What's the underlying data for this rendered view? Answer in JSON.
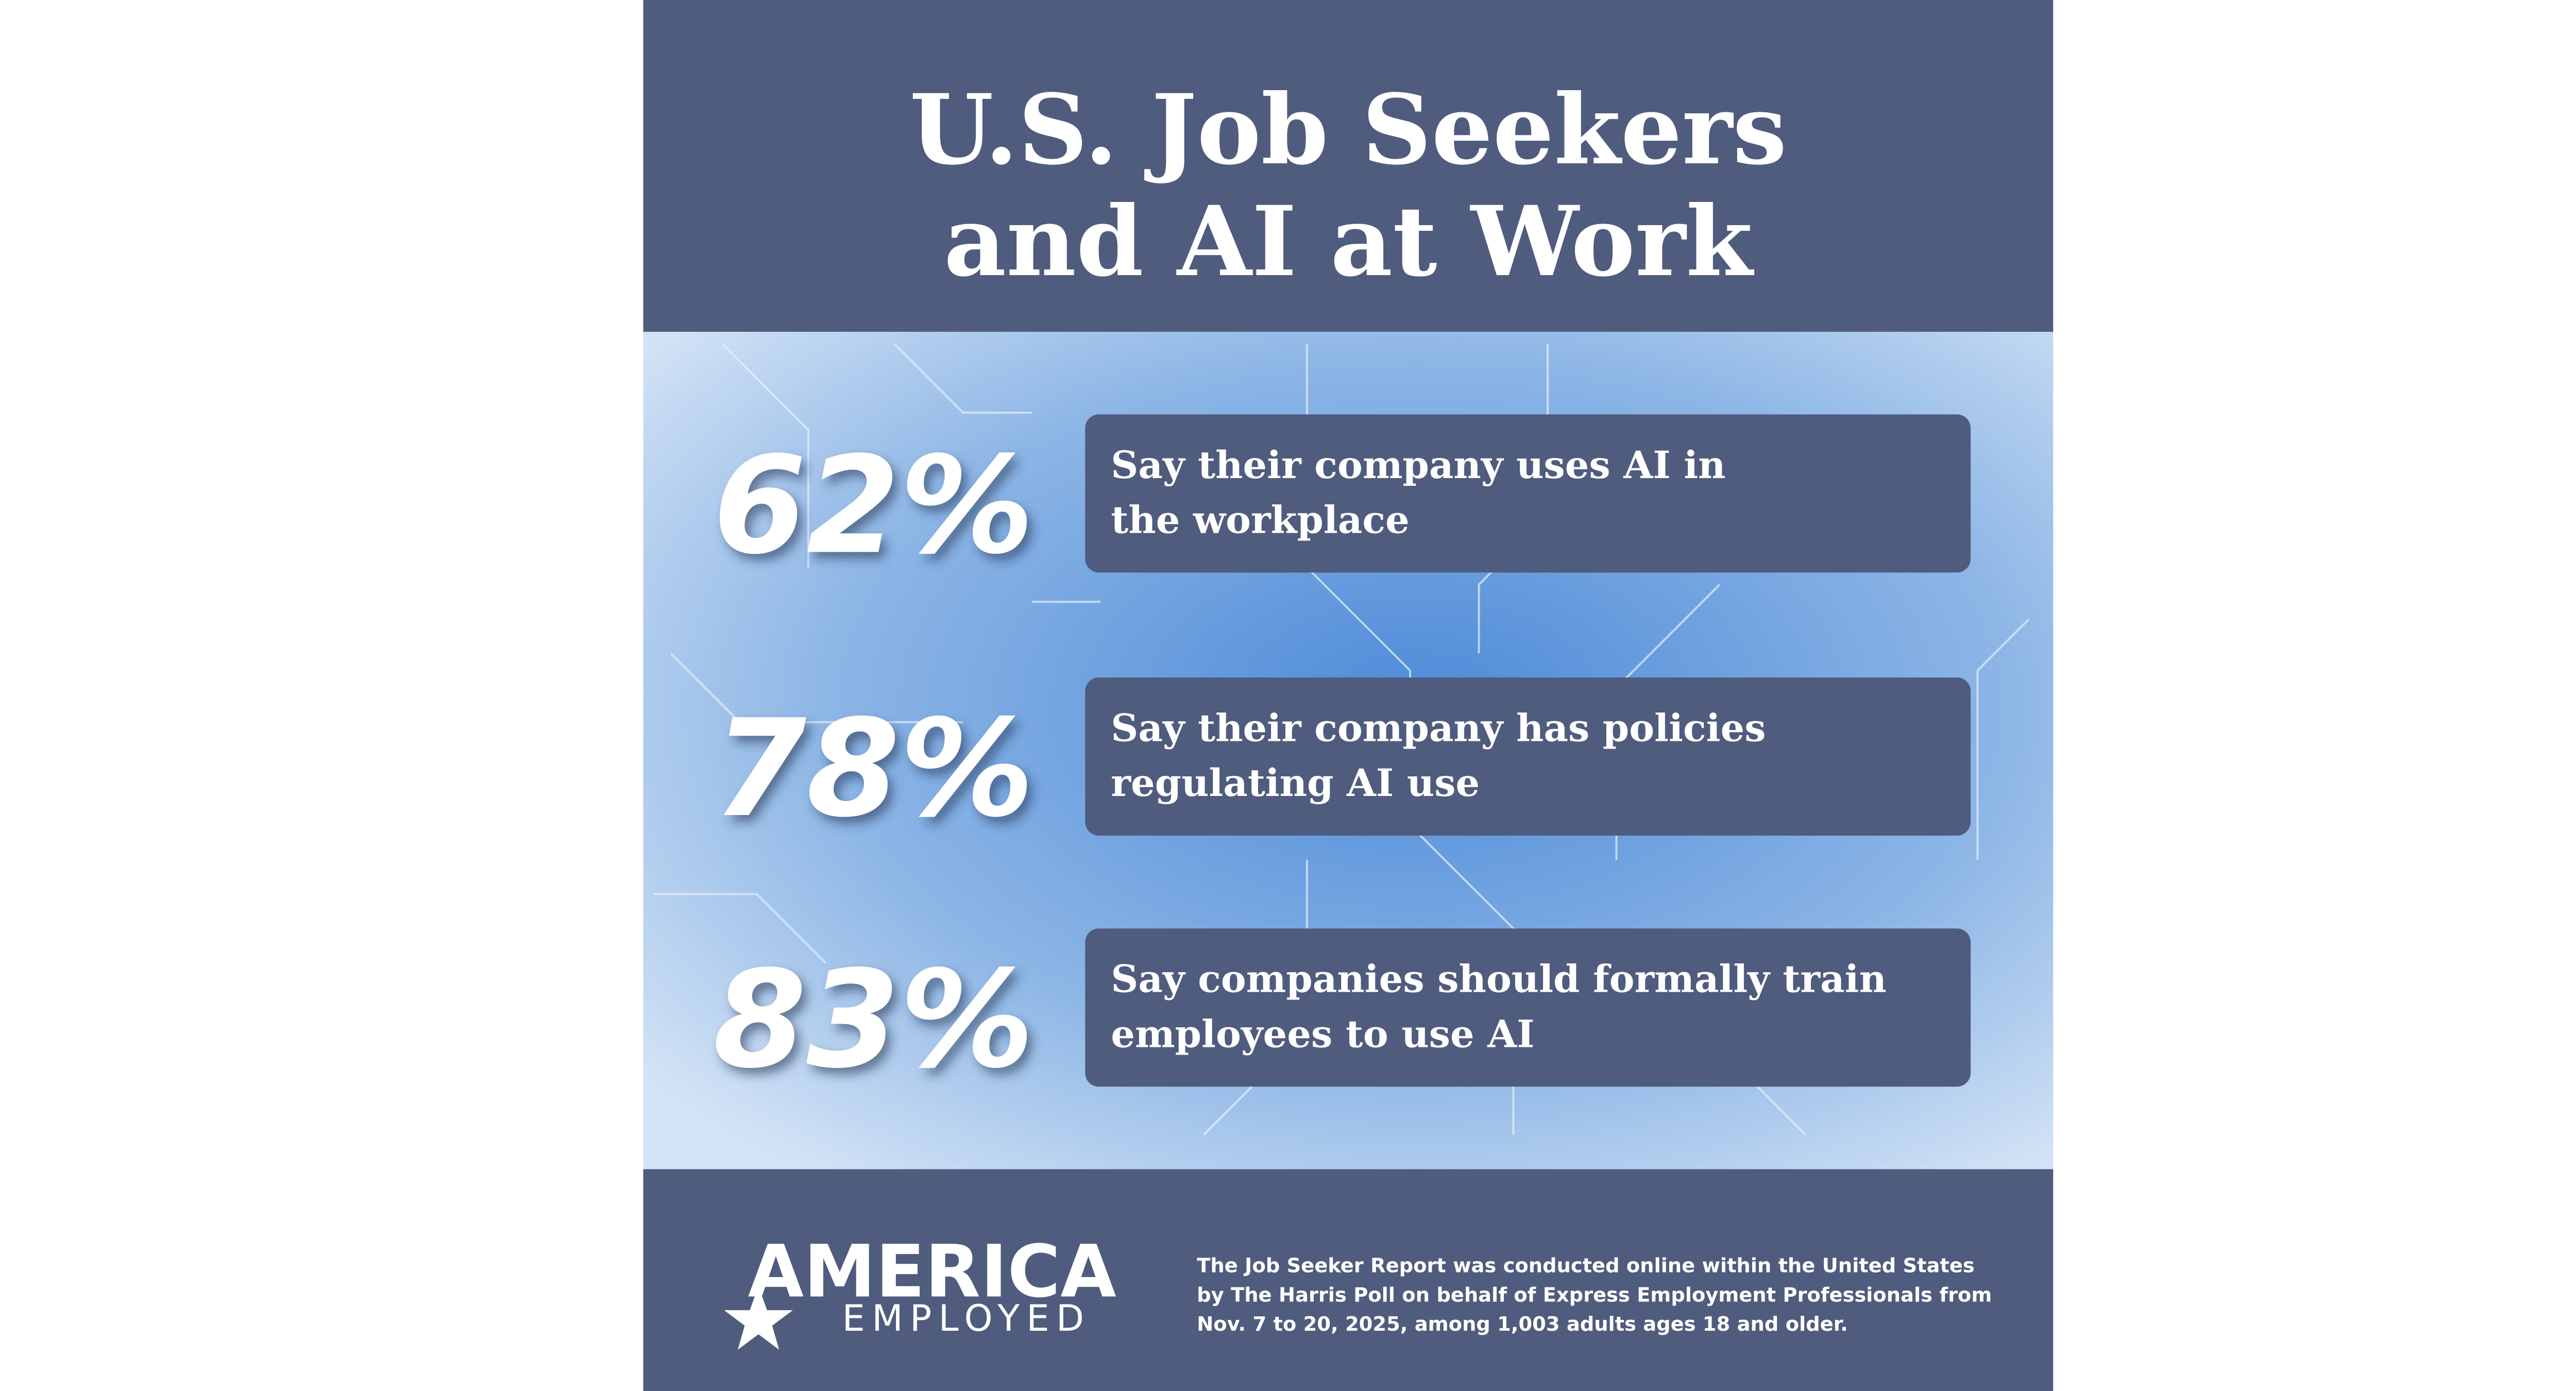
{
  "header": {
    "title_lines": [
      "U.S. Job Seekers",
      "and AI at Work"
    ]
  },
  "stats": [
    {
      "figure": "62%",
      "text_lines": [
        "Say their company uses AI in",
        "the workplace"
      ]
    },
    {
      "figure": "78%",
      "text_lines": [
        "Say their company has policies",
        "regulating AI use"
      ]
    },
    {
      "figure": "83%",
      "text_lines": [
        "Say companies should formally train",
        "employees to use AI"
      ]
    }
  ],
  "footer": {
    "logo_top": "AMERICA",
    "logo_bottom": "EMPLOYED",
    "note_lines": [
      "The Job Seeker Report was conducted online within the United States",
      "by The Harris Poll on behalf of Express Employment Professionals from",
      "Nov. 7 to 20, 2025, among 1,003 adults ages 18 and older."
    ]
  }
}
